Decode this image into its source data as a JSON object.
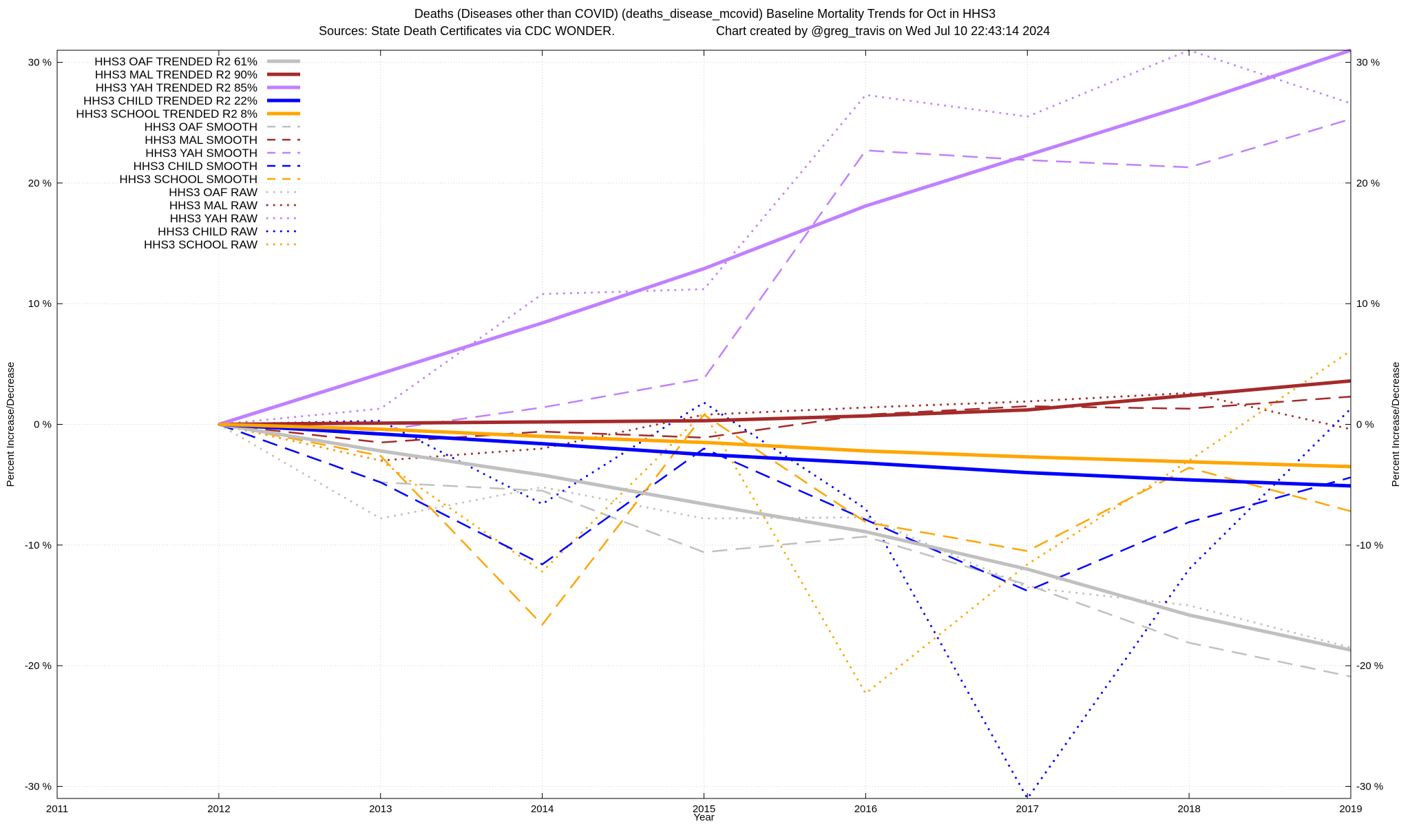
{
  "chart_data": {
    "type": "line",
    "title_line1": "Deaths (Diseases other than COVID) (deaths_disease_mcovid)  Baseline Mortality Trends for Oct in HHS3",
    "title_line2_left": "Sources: State Death Certificates via CDC WONDER.",
    "title_line2_right": "Chart created by @greg_travis on Wed Jul 10 22:43:14 2024",
    "xlabel": "Year",
    "ylabel_left": "Percent Increase/Decrease",
    "ylabel_right": "Percent Increase/Decrease",
    "xlim": [
      2011,
      2019
    ],
    "ylim": [
      -31,
      31
    ],
    "x_ticks": [
      2011,
      2012,
      2013,
      2014,
      2015,
      2016,
      2017,
      2018,
      2019
    ],
    "x_tick_labels": [
      "2011",
      "2012",
      "2013",
      "2014",
      "2015",
      "2016",
      "2017",
      "2018",
      "2019"
    ],
    "y_ticks": [
      -30,
      -20,
      -10,
      0,
      10,
      20,
      30
    ],
    "y_tick_labels": [
      "-30 %",
      "-20 %",
      "-10 %",
      "0 %",
      "10 %",
      "20 %",
      "30 %"
    ],
    "grid": true,
    "legend_position": "top-left",
    "series": [
      {
        "name": "HHS3 OAF TRENDED R2  61%",
        "style": "solid",
        "color": "#c0c0c0",
        "x": [
          2012,
          2013,
          2014,
          2015,
          2016,
          2017,
          2018,
          2019
        ],
        "values": [
          0,
          -2.2,
          -4.2,
          -6.6,
          -8.9,
          -12.0,
          -15.8,
          -18.7
        ]
      },
      {
        "name": "HHS3 MAL TRENDED R2  90%",
        "style": "solid",
        "color": "#a52a2a",
        "x": [
          2012,
          2013,
          2014,
          2015,
          2016,
          2017,
          2018,
          2019
        ],
        "values": [
          0,
          0.1,
          0.2,
          0.3,
          0.7,
          1.2,
          2.4,
          3.6
        ]
      },
      {
        "name": "HHS3 YAH TRENDED R2  85%",
        "style": "solid",
        "color": "#c080ff",
        "x": [
          2012,
          2013,
          2014,
          2015,
          2016,
          2017,
          2018,
          2019
        ],
        "values": [
          0,
          4.2,
          8.4,
          12.9,
          18.1,
          22.3,
          26.5,
          31.0
        ]
      },
      {
        "name": "HHS3 CHILD TRENDED R2  22%",
        "style": "solid",
        "color": "#0000ff",
        "x": [
          2012,
          2013,
          2014,
          2015,
          2016,
          2017,
          2018,
          2019
        ],
        "values": [
          0,
          -0.8,
          -1.6,
          -2.5,
          -3.2,
          -4.0,
          -4.6,
          -5.1
        ]
      },
      {
        "name": "HHS3 SCHOOL TRENDED R2   8%",
        "style": "solid",
        "color": "#ffa500",
        "x": [
          2012,
          2013,
          2014,
          2015,
          2016,
          2017,
          2018,
          2019
        ],
        "values": [
          0,
          -0.4,
          -1.0,
          -1.5,
          -2.2,
          -2.7,
          -3.1,
          -3.5
        ]
      },
      {
        "name": "HHS3 OAF SMOOTH",
        "style": "dashed",
        "color": "#c0c0c0",
        "x": [
          2012,
          2013,
          2014,
          2015,
          2016,
          2017,
          2018,
          2019
        ],
        "values": [
          0,
          -4.8,
          -5.5,
          -10.6,
          -9.3,
          -13.3,
          -18.1,
          -20.9
        ]
      },
      {
        "name": "HHS3 MAL SMOOTH",
        "style": "dashed",
        "color": "#a52a2a",
        "x": [
          2012,
          2013,
          2014,
          2015,
          2016,
          2017,
          2018,
          2019
        ],
        "values": [
          0,
          -1.5,
          -0.6,
          -1.1,
          0.8,
          1.5,
          1.3,
          2.3
        ]
      },
      {
        "name": "HHS3 YAH SMOOTH",
        "style": "dashed",
        "color": "#c080ff",
        "x": [
          2012,
          2013,
          2014,
          2015,
          2016,
          2017,
          2018,
          2019
        ],
        "values": [
          0,
          -0.5,
          1.4,
          3.8,
          22.7,
          21.9,
          21.3,
          25.3
        ]
      },
      {
        "name": "HHS3 CHILD SMOOTH",
        "style": "dashed",
        "color": "#0000ff",
        "x": [
          2012,
          2013,
          2014,
          2015,
          2016,
          2017,
          2018,
          2019
        ],
        "values": [
          0,
          -4.8,
          -11.6,
          -2.0,
          -7.9,
          -13.8,
          -8.1,
          -4.4
        ]
      },
      {
        "name": "HHS3 SCHOOL SMOOTH",
        "style": "dashed",
        "color": "#ffa500",
        "x": [
          2012,
          2013,
          2014,
          2015,
          2016,
          2017,
          2018,
          2019
        ],
        "values": [
          0,
          -2.6,
          -16.6,
          0.8,
          -8.1,
          -10.5,
          -3.6,
          -7.2
        ]
      },
      {
        "name": "HHS3 OAF RAW",
        "style": "dotted",
        "color": "#c0c0c0",
        "x": [
          2012,
          2013,
          2014,
          2015,
          2016,
          2017,
          2018,
          2019
        ],
        "values": [
          0,
          -7.8,
          -5.2,
          -7.8,
          -7.7,
          -13.5,
          -15.0,
          -18.5
        ]
      },
      {
        "name": "HHS3 MAL RAW",
        "style": "dotted",
        "color": "#a52a2a",
        "x": [
          2012,
          2013,
          2014,
          2015,
          2016,
          2017,
          2018,
          2019
        ],
        "values": [
          0,
          -3.0,
          -2.0,
          0.8,
          1.4,
          1.9,
          2.6,
          -0.4
        ]
      },
      {
        "name": "HHS3 YAH RAW",
        "style": "dotted",
        "color": "#c080ff",
        "x": [
          2012,
          2013,
          2014,
          2015,
          2016,
          2017,
          2018,
          2019
        ],
        "values": [
          0,
          1.3,
          10.8,
          11.2,
          27.3,
          25.5,
          31.0,
          26.6
        ]
      },
      {
        "name": "HHS3 CHILD RAW",
        "style": "dotted",
        "color": "#0000ff",
        "x": [
          2012,
          2013,
          2014,
          2015,
          2016,
          2017,
          2018,
          2019
        ],
        "values": [
          0,
          0.3,
          -6.6,
          1.8,
          -7.0,
          -31.0,
          -12.0,
          1.3
        ]
      },
      {
        "name": "HHS3 SCHOOL RAW",
        "style": "dotted",
        "color": "#ffa500",
        "x": [
          2012,
          2013,
          2014,
          2015,
          2016,
          2017,
          2018,
          2019
        ],
        "values": [
          0,
          -3.0,
          -12.2,
          1.0,
          -22.3,
          -11.6,
          -3.0,
          6.1
        ]
      }
    ]
  }
}
